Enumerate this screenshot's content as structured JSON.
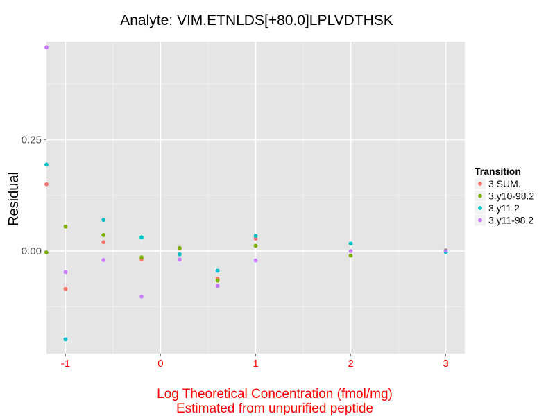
{
  "chart_data": {
    "type": "scatter",
    "title": "Analyte: VIM.ETNLDS[+80.0]LPLVDTHSK",
    "xlabel": [
      "Log Theoretical Concentration (fmol/mg)",
      "Estimated from unpurified peptide"
    ],
    "ylabel": "Residual",
    "xlim": [
      -1.2,
      3.2
    ],
    "ylim": [
      -0.23,
      0.47
    ],
    "x_major_ticks": [
      -1,
      0,
      1,
      2,
      3
    ],
    "x_minor_ticks": [
      -0.5,
      0.5,
      1.5,
      2.5
    ],
    "y_major_ticks": [
      0.0,
      0.25
    ],
    "y_minor_ticks": [
      -0.125,
      0.125,
      0.375
    ],
    "x_tick_labels": [
      "-1",
      "0",
      "1",
      "2",
      "3"
    ],
    "y_tick_labels": [
      "0.00",
      "0.25"
    ],
    "x_tick_color": "#ff0000",
    "xlabel_color": "#ff0000",
    "panel_color": "#e5e5e5",
    "grid_color": "#ffffff",
    "legend": {
      "title": "Transition",
      "position": "right"
    },
    "series": [
      {
        "name": "3.SUM.",
        "color": "#f8766d",
        "points": [
          [
            -1.2,
            0.15
          ],
          [
            -1.0,
            -0.085
          ],
          [
            -0.6,
            0.02
          ],
          [
            -0.2,
            -0.018
          ],
          [
            0.2,
            0.006
          ],
          [
            0.6,
            -0.062
          ],
          [
            1.0,
            0.028
          ],
          [
            2.0,
            0.0
          ],
          [
            3.0,
            0.0
          ]
        ]
      },
      {
        "name": "3.y10-98.2",
        "color": "#7cae00",
        "points": [
          [
            -1.2,
            -0.003
          ],
          [
            -1.0,
            0.055
          ],
          [
            -0.6,
            0.036
          ],
          [
            -0.2,
            -0.014
          ],
          [
            0.2,
            0.007
          ],
          [
            0.6,
            -0.066
          ],
          [
            1.0,
            0.012
          ],
          [
            2.0,
            -0.01
          ],
          [
            3.0,
            0.002
          ]
        ]
      },
      {
        "name": "3.y11.2",
        "color": "#00bfc4",
        "points": [
          [
            -1.2,
            0.194
          ],
          [
            -1.0,
            -0.198
          ],
          [
            -0.6,
            0.07
          ],
          [
            -0.2,
            0.031
          ],
          [
            0.2,
            -0.007
          ],
          [
            0.6,
            -0.044
          ],
          [
            1.0,
            0.034
          ],
          [
            2.0,
            0.017
          ],
          [
            3.0,
            -0.002
          ]
        ]
      },
      {
        "name": "3.y11-98.2",
        "color": "#c77cff",
        "points": [
          [
            -1.2,
            0.457
          ],
          [
            -1.0,
            -0.047
          ],
          [
            -0.6,
            -0.02
          ],
          [
            -0.2,
            -0.102
          ],
          [
            0.2,
            -0.019
          ],
          [
            0.6,
            -0.078
          ],
          [
            1.0,
            -0.021
          ],
          [
            2.0,
            0.0
          ],
          [
            3.0,
            0.001
          ]
        ]
      }
    ]
  }
}
